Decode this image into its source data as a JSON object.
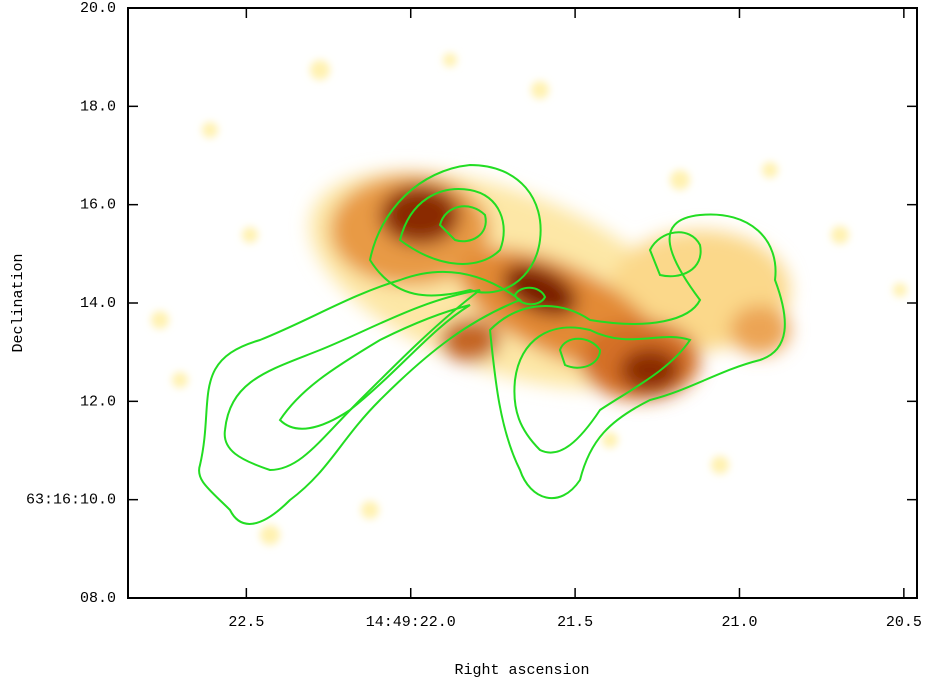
{
  "chart_data": {
    "type": "image",
    "x_label": "Right ascension",
    "y_label": "Declination",
    "xlim": [
      22.86,
      20.46
    ],
    "ylim": [
      8,
      20
    ],
    "xticks": [
      22.5,
      {
        "value": 22.0,
        "label": "14:49:22.0"
      },
      21.5,
      {
        "value": 21.0,
        "label": "21.0"
      },
      20.5
    ],
    "yticks": [
      {
        "value": 8,
        "label": "08.0"
      },
      {
        "value": 10,
        "label": "63:16:10.0"
      },
      {
        "value": 12,
        "label": "12.0"
      },
      {
        "value": 14,
        "label": "14.0"
      },
      {
        "value": 16,
        "label": "16.0"
      },
      {
        "value": 18,
        "label": "18.0"
      },
      {
        "value": 20,
        "label": "20.0"
      }
    ]
  }
}
